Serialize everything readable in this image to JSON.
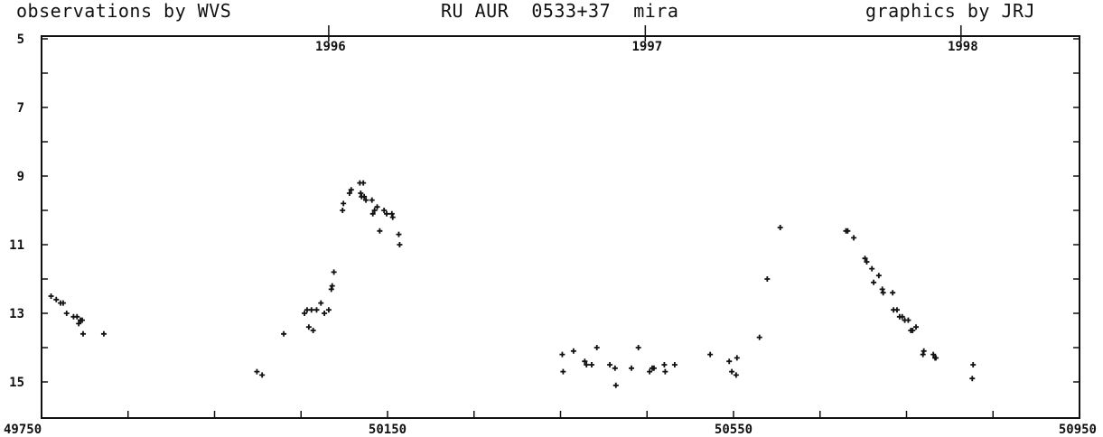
{
  "header": {
    "left": "observations by WVS",
    "center": "RU AUR  0533+37  mira",
    "right": "graphics by JRJ"
  },
  "chart_data": {
    "type": "scatter",
    "xlim": [
      49750,
      50950
    ],
    "ylim": [
      15,
      5
    ],
    "y_inverted": true,
    "x_ticks_labeled": [
      "49750",
      "50150",
      "50550",
      "50950"
    ],
    "x_tick_values": [
      49750,
      49850,
      49950,
      50050,
      50150,
      50250,
      50350,
      50450,
      50550,
      50650,
      50750,
      50850,
      50950
    ],
    "y_ticks_labeled": [
      "5",
      "7",
      "9",
      "11",
      "13",
      "15"
    ],
    "y_tick_values": [
      5,
      6,
      7,
      8,
      9,
      10,
      11,
      12,
      13,
      14,
      15
    ],
    "year_labels": [
      {
        "label": "1996",
        "x": 50082
      },
      {
        "label": "1997",
        "x": 50448
      },
      {
        "label": "1998",
        "x": 50813
      }
    ],
    "grid": false,
    "series": [
      {
        "points": [
          [
            49761,
            12.5
          ],
          [
            49767,
            12.6
          ],
          [
            49772,
            12.7
          ],
          [
            49775,
            12.7
          ],
          [
            49779,
            13.0
          ],
          [
            49787,
            13.1
          ],
          [
            49791,
            13.1
          ],
          [
            49793,
            13.3
          ],
          [
            49795,
            13.2
          ],
          [
            49797,
            13.2
          ],
          [
            49798,
            13.6
          ],
          [
            49822,
            13.6
          ],
          [
            49999,
            14.7
          ],
          [
            50005,
            14.8
          ],
          [
            50030,
            13.6
          ],
          [
            50054,
            13.0
          ],
          [
            50057,
            12.9
          ],
          [
            50059,
            13.4
          ],
          [
            50062,
            12.9
          ],
          [
            50064,
            13.5
          ],
          [
            50068,
            12.9
          ],
          [
            50073,
            12.7
          ],
          [
            50077,
            13.0
          ],
          [
            50082,
            12.9
          ],
          [
            50085,
            12.3
          ],
          [
            50086,
            12.2
          ],
          [
            50088,
            11.8
          ],
          [
            50098,
            10.0
          ],
          [
            50099,
            9.8
          ],
          [
            50106,
            9.5
          ],
          [
            50108,
            9.4
          ],
          [
            50118,
            9.2
          ],
          [
            50119,
            9.5
          ],
          [
            50120,
            9.6
          ],
          [
            50122,
            9.2
          ],
          [
            50123,
            9.6
          ],
          [
            50125,
            9.7
          ],
          [
            50132,
            9.7
          ],
          [
            50133,
            10.1
          ],
          [
            50135,
            10.0
          ],
          [
            50138,
            9.9
          ],
          [
            50141,
            10.6
          ],
          [
            50146,
            10.0
          ],
          [
            50149,
            10.1
          ],
          [
            50155,
            10.1
          ],
          [
            50156,
            10.2
          ],
          [
            50163,
            10.7
          ],
          [
            50164,
            11.0
          ],
          [
            50352,
            14.2
          ],
          [
            50353,
            14.7
          ],
          [
            50365,
            14.1
          ],
          [
            50378,
            14.4
          ],
          [
            50380,
            14.5
          ],
          [
            50386,
            14.5
          ],
          [
            50392,
            14.0
          ],
          [
            50407,
            14.5
          ],
          [
            50413,
            14.6
          ],
          [
            50414,
            15.1
          ],
          [
            50432,
            14.6
          ],
          [
            50440,
            14.0
          ],
          [
            50453,
            14.7
          ],
          [
            50456,
            14.6
          ],
          [
            50458,
            14.6
          ],
          [
            50470,
            14.5
          ],
          [
            50471,
            14.7
          ],
          [
            50482,
            14.5
          ],
          [
            50523,
            14.2
          ],
          [
            50545,
            14.4
          ],
          [
            50548,
            14.7
          ],
          [
            50553,
            14.8
          ],
          [
            50554,
            14.3
          ],
          [
            50580,
            13.7
          ],
          [
            50589,
            12.0
          ],
          [
            50604,
            10.5
          ],
          [
            50680,
            10.6
          ],
          [
            50682,
            10.6
          ],
          [
            50689,
            10.8
          ],
          [
            50702,
            11.4
          ],
          [
            50704,
            11.5
          ],
          [
            50710,
            11.7
          ],
          [
            50712,
            12.1
          ],
          [
            50718,
            11.9
          ],
          [
            50722,
            12.3
          ],
          [
            50723,
            12.4
          ],
          [
            50734,
            12.4
          ],
          [
            50735,
            12.9
          ],
          [
            50739,
            12.9
          ],
          [
            50742,
            13.1
          ],
          [
            50745,
            13.1
          ],
          [
            50748,
            13.2
          ],
          [
            50752,
            13.2
          ],
          [
            50755,
            13.5
          ],
          [
            50757,
            13.5
          ],
          [
            50761,
            13.4
          ],
          [
            50769,
            14.2
          ],
          [
            50770,
            14.1
          ],
          [
            50781,
            14.2
          ],
          [
            50783,
            14.3
          ],
          [
            50784,
            14.3
          ],
          [
            50826,
            14.9
          ],
          [
            50827,
            14.5
          ]
        ]
      }
    ]
  }
}
